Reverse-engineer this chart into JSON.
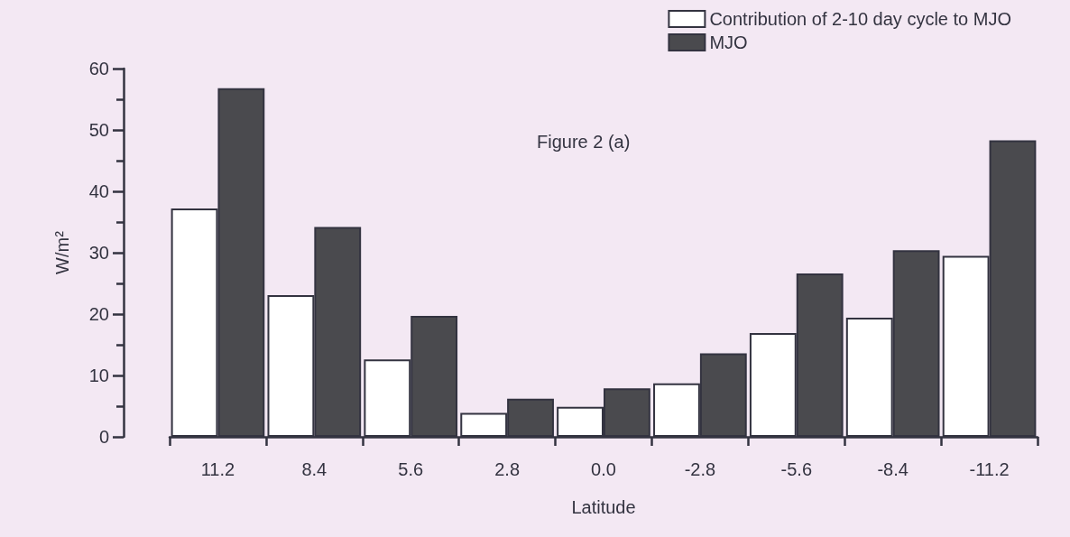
{
  "chart_data": {
    "type": "bar",
    "title": "Figure 2 (a)",
    "xlabel": "Latitude",
    "ylabel": "W/m²",
    "categories": [
      "11.2",
      "8.4",
      "5.6",
      "2.8",
      "0.0",
      "-2.8",
      "-5.6",
      "-8.4",
      "-11.2"
    ],
    "series": [
      {
        "name": "Contribution of 2-10 day cycle to MJO",
        "color": "#ffffff",
        "values": [
          37.2,
          23.1,
          12.6,
          3.9,
          4.9,
          8.7,
          16.9,
          19.4,
          29.5
        ]
      },
      {
        "name": "MJO",
        "color": "#4a4a4e",
        "values": [
          56.8,
          34.2,
          19.7,
          6.2,
          7.9,
          13.6,
          26.6,
          30.4,
          48.3
        ]
      }
    ],
    "ylim": [
      0,
      60
    ],
    "yticks": [
      0,
      10,
      20,
      30,
      40,
      50,
      60
    ],
    "grid": false,
    "legend": "top right"
  }
}
